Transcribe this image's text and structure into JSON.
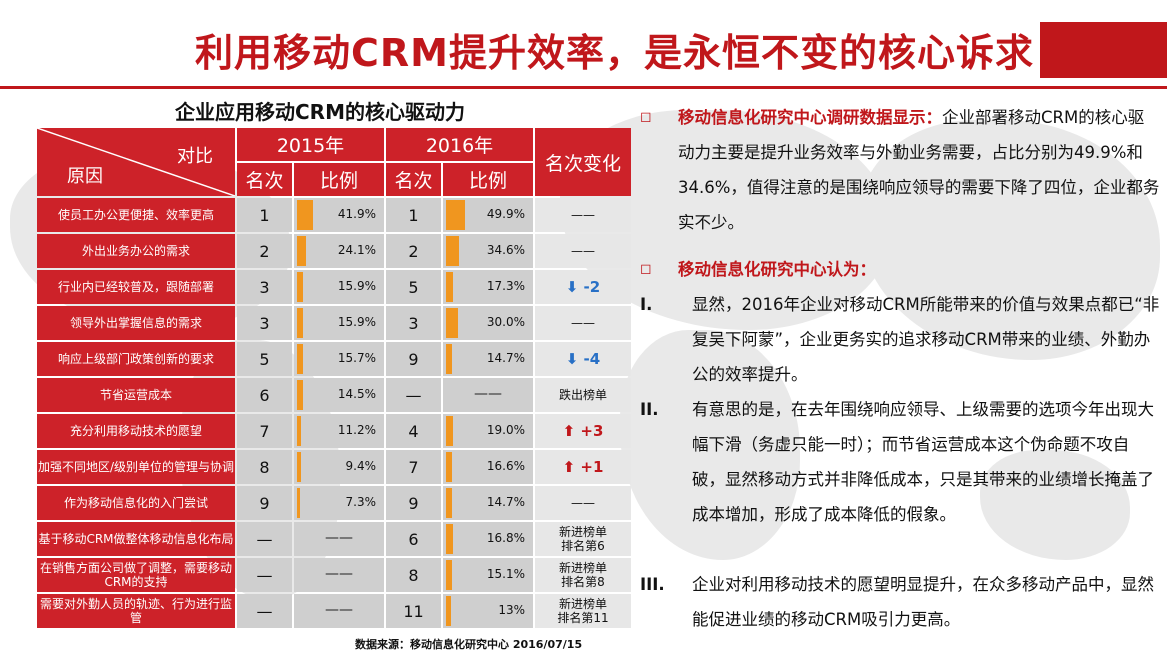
{
  "title": "利用移动CRM提升效率，是永恒不变的核心诉求",
  "table_title": "企业应用移动CRM的核心驱动力",
  "table": {
    "diag_top": "对比",
    "diag_bottom": "原因",
    "year_2015": "2015年",
    "year_2016": "2016年",
    "rank_label": "名次",
    "ratio_label": "比例",
    "change_label": "名次变化",
    "rows": [
      {
        "reason": "使员工办公更便捷、效率更高",
        "r15": "1",
        "p15": "41.9%",
        "v15": 41.9,
        "r16": "1",
        "p16": "49.9%",
        "v16": 49.9,
        "change": "——",
        "dir": ""
      },
      {
        "reason": "外出业务办公的需求",
        "r15": "2",
        "p15": "24.1%",
        "v15": 24.1,
        "r16": "2",
        "p16": "34.6%",
        "v16": 34.6,
        "change": "——",
        "dir": ""
      },
      {
        "reason": "行业内已经较普及，跟随部署",
        "r15": "3",
        "p15": "15.9%",
        "v15": 15.9,
        "r16": "5",
        "p16": "17.3%",
        "v16": 17.3,
        "change": "⬇ -2",
        "dir": "down"
      },
      {
        "reason": "领导外出掌握信息的需求",
        "r15": "3",
        "p15": "15.9%",
        "v15": 15.9,
        "r16": "3",
        "p16": "30.0%",
        "v16": 30.0,
        "change": "——",
        "dir": ""
      },
      {
        "reason": "响应上级部门政策创新的要求",
        "r15": "5",
        "p15": "15.7%",
        "v15": 15.7,
        "r16": "9",
        "p16": "14.7%",
        "v16": 14.7,
        "change": "⬇ -4",
        "dir": "down"
      },
      {
        "reason": "节省运营成本",
        "r15": "6",
        "p15": "14.5%",
        "v15": 14.5,
        "r16": "—",
        "p16": "——",
        "v16": 0,
        "change": "跌出榜单",
        "dir": ""
      },
      {
        "reason": "充分利用移动技术的愿望",
        "r15": "7",
        "p15": "11.2%",
        "v15": 11.2,
        "r16": "4",
        "p16": "19.0%",
        "v16": 19.0,
        "change": "⬆ +3",
        "dir": "up"
      },
      {
        "reason": "加强不同地区/级别单位的管理与协调",
        "r15": "8",
        "p15": "9.4%",
        "v15": 9.4,
        "r16": "7",
        "p16": "16.6%",
        "v16": 16.6,
        "change": "⬆ +1",
        "dir": "up"
      },
      {
        "reason": "作为移动信息化的入门尝试",
        "r15": "9",
        "p15": "7.3%",
        "v15": 7.3,
        "r16": "9",
        "p16": "14.7%",
        "v16": 14.7,
        "change": "——",
        "dir": ""
      },
      {
        "reason": "基于移动CRM做整体移动信息化布局",
        "r15": "—",
        "p15": "——",
        "v15": 0,
        "r16": "6",
        "p16": "16.8%",
        "v16": 16.8,
        "change": "新进榜单\n排名第6",
        "dir": ""
      },
      {
        "reason": "在销售方面公司做了调整，需要移动CRM的支持",
        "r15": "—",
        "p15": "——",
        "v15": 0,
        "r16": "8",
        "p16": "15.1%",
        "v16": 15.1,
        "change": "新进榜单\n排名第8",
        "dir": ""
      },
      {
        "reason": "需要对外勤人员的轨迹、行为进行监管",
        "r15": "—",
        "p15": "——",
        "v15": 0,
        "r16": "11",
        "p16": "13%",
        "v16": 13.0,
        "change": "新进榜单\n排名第11",
        "dir": ""
      }
    ]
  },
  "source": "数据来源：移动信息化研究中心 2016/07/15",
  "right": {
    "p1_bullet": "◻",
    "p1_red": "移动信息化研究中心调研数据显示：",
    "p1_text": "企业部署移动CRM的核心驱动力主要是提升业务效率与外勤业务需要，占比分别为49.9%和34.6%，值得注意的是围绕响应领导的需要下降了四位，企业都务实不少。",
    "p2_bullet": "◻",
    "p2_red": "移动信息化研究中心认为：",
    "items": [
      {
        "num": "I.",
        "text": "显然，2016年企业对移动CRM所能带来的价值与效果点都已“非复吴下阿蒙”，企业更务实的追求移动CRM带来的业绩、外勤办公的效率提升。"
      },
      {
        "num": "II.",
        "text": "有意思的是，在去年围绕响应领导、上级需要的选项今年出现大幅下滑（务虚只能一时）；而节省运营成本这个伪命题不攻自破，显然移动方式并非降低成本，只是其带来的业绩增长掩盖了成本增加，形成了成本降低的假象。"
      },
      {
        "num": "III.",
        "text": "企业对利用移动技术的愿望明显提升，在众多移动产品中，显然能促进业绩的移动CRM吸引力更高。"
      }
    ]
  },
  "colors": {
    "accent": "#c0171b",
    "bar": "#f0961f",
    "down": "#2870c6"
  }
}
